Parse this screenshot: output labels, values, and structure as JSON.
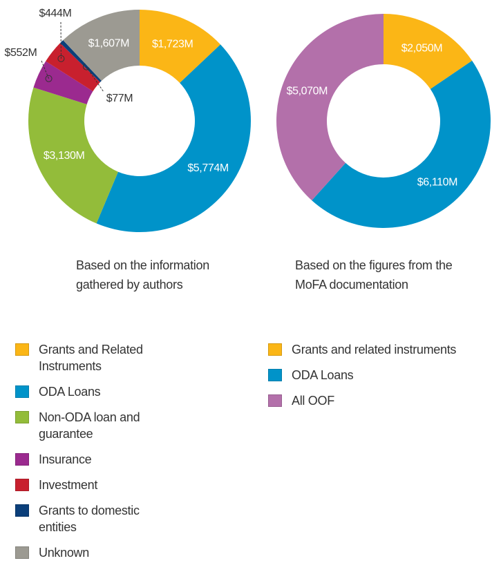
{
  "chart_data": [
    {
      "type": "pie",
      "caption": "Based on the information gathered by authors",
      "categories": [
        "Grants and Related Instruments",
        "ODA Loans",
        "Non-ODA loan and guarantee",
        "Insurance",
        "Investment",
        "Grants to domestic entities",
        "Unknown"
      ],
      "values": [
        1723,
        5774,
        3130,
        552,
        444,
        77,
        1607
      ],
      "value_labels": [
        "$1,723M",
        "$5,774M",
        "$3,130M",
        "$552M",
        "$444M",
        "$77M",
        "$1,607M"
      ],
      "colors": [
        "#fbb616",
        "#0093c9",
        "#93bc3a",
        "#9b2a8f",
        "#c8202e",
        "#0b3f7a",
        "#9c9a92"
      ]
    },
    {
      "type": "pie",
      "caption": "Based on the figures from the MoFA documentation",
      "categories": [
        "Grants and related instruments",
        "ODA Loans",
        "All OOF"
      ],
      "values": [
        2050,
        6110,
        5070
      ],
      "value_labels": [
        "$2,050M",
        "$6,110M",
        "$5,070M"
      ],
      "colors": [
        "#fbb616",
        "#0093c9",
        "#b370aa"
      ]
    }
  ]
}
